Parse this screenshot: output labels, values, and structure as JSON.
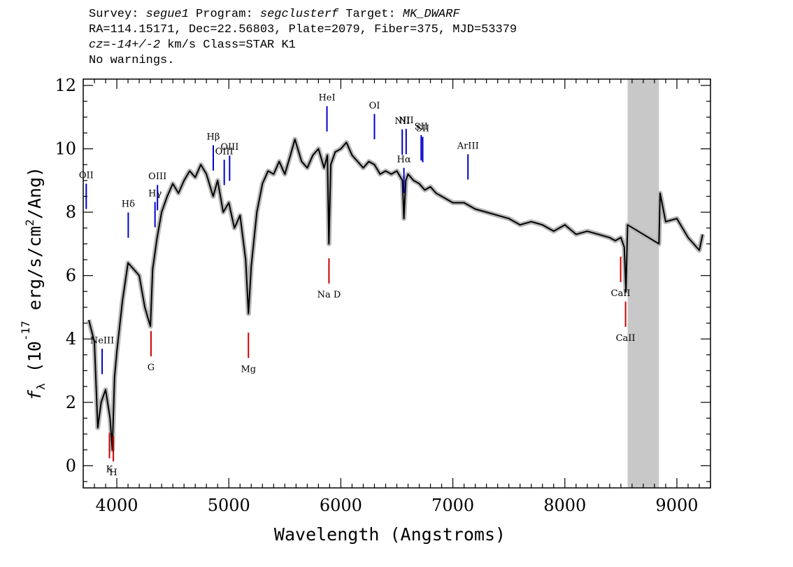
{
  "header": {
    "line1": {
      "survey_label": "Survey: ",
      "survey": "segue1",
      "program_label": " Program: ",
      "program": "segclusterf",
      "target_label": " Target: ",
      "target": "MK_DWARF"
    },
    "line2": "RA=114.15171, Dec=22.56803, Plate=2079, Fiber=375, MJD=53379",
    "line3": {
      "cz_label": "cz",
      "cz_value": "=-14+/-2",
      "rest": " km/s Class=STAR K1"
    },
    "line4": "No warnings."
  },
  "chart_data": {
    "type": "line",
    "xlabel": "Wavelength (Angstroms)",
    "ylabel": "f_λ (10^-17 erg/s/cm^2/Ang)",
    "xlim": [
      3700,
      9300
    ],
    "ylim": [
      -0.7,
      12.2
    ],
    "x_ticks": [
      4000,
      5000,
      6000,
      7000,
      8000,
      9000
    ],
    "y_ticks": [
      0,
      2,
      4,
      6,
      8,
      10,
      12
    ],
    "masked_region": [
      8560,
      8840
    ],
    "series": [
      {
        "color": "#000000",
        "x": [
          3750,
          3800,
          3830,
          3860,
          3900,
          3940,
          3960,
          3980,
          4000,
          4050,
          4100,
          4150,
          4200,
          4250,
          4300,
          4320,
          4360,
          4400,
          4450,
          4500,
          4550,
          4600,
          4650,
          4700,
          4750,
          4800,
          4860,
          4900,
          4950,
          5000,
          5050,
          5100,
          5150,
          5175,
          5200,
          5250,
          5300,
          5350,
          5400,
          5450,
          5500,
          5550,
          5590,
          5650,
          5700,
          5750,
          5800,
          5850,
          5880,
          5893,
          5910,
          5950,
          6000,
          6050,
          6100,
          6150,
          6200,
          6250,
          6300,
          6350,
          6400,
          6450,
          6500,
          6550,
          6563,
          6580,
          6600,
          6650,
          6700,
          6750,
          6800,
          6850,
          6900,
          7000,
          7100,
          7200,
          7300,
          7400,
          7500,
          7600,
          7700,
          7800,
          7900,
          8000,
          8100,
          8200,
          8300,
          8400,
          8450,
          8500,
          8530,
          8545,
          8560,
          8840,
          8850,
          8900,
          9000,
          9100,
          9200,
          9230
        ],
        "y": [
          4.6,
          3.9,
          1.2,
          2.0,
          2.4,
          1.5,
          0.5,
          2.8,
          3.6,
          5.2,
          6.4,
          6.2,
          6.0,
          5.0,
          4.4,
          6.2,
          7.2,
          8.0,
          8.5,
          8.9,
          8.6,
          9.0,
          9.3,
          9.1,
          9.5,
          9.2,
          8.5,
          9.0,
          8.0,
          8.3,
          7.5,
          7.9,
          6.5,
          4.8,
          6.3,
          8.0,
          8.9,
          9.3,
          9.2,
          9.6,
          9.2,
          9.8,
          10.3,
          9.6,
          9.4,
          9.8,
          10.0,
          9.4,
          9.8,
          7.0,
          9.5,
          9.9,
          10.0,
          10.2,
          9.8,
          9.6,
          9.4,
          9.6,
          9.5,
          9.2,
          9.3,
          9.2,
          9.3,
          9.0,
          7.8,
          9.0,
          9.2,
          9.0,
          8.9,
          8.7,
          8.8,
          8.6,
          8.5,
          8.3,
          8.3,
          8.1,
          8.0,
          7.9,
          7.8,
          7.6,
          7.7,
          7.6,
          7.4,
          7.6,
          7.3,
          7.4,
          7.3,
          7.2,
          7.1,
          7.2,
          6.9,
          5.5,
          7.6,
          7.0,
          8.6,
          7.7,
          7.8,
          7.2,
          6.8,
          7.3
        ]
      }
    ],
    "line_labels": [
      {
        "label": "OII",
        "x": 3727,
        "color": "#0000cc"
      },
      {
        "label": "NeIII",
        "x": 3869,
        "color": "#0000cc"
      },
      {
        "label": "Hδ",
        "x": 4102,
        "color": "#0000cc"
      },
      {
        "label": "Hγ",
        "x": 4341,
        "color": "#0000cc"
      },
      {
        "label": "OIII",
        "x": 4363,
        "color": "#0000cc"
      },
      {
        "label": "Hβ",
        "x": 4861,
        "color": "#0000cc"
      },
      {
        "label": "OIII",
        "x": 4959,
        "color": "#0000cc"
      },
      {
        "label": "OIII",
        "x": 5007,
        "color": "#0000cc"
      },
      {
        "label": "HeI",
        "x": 5876,
        "color": "#0000cc"
      },
      {
        "label": "OI",
        "x": 6300,
        "color": "#0000cc"
      },
      {
        "label": "NII",
        "x": 6548,
        "color": "#0000cc"
      },
      {
        "label": "Hα",
        "x": 6563,
        "color": "#0000cc"
      },
      {
        "label": "NII",
        "x": 6583,
        "color": "#0000cc"
      },
      {
        "label": "SII",
        "x": 6717,
        "color": "#0000cc"
      },
      {
        "label": "SII",
        "x": 6731,
        "color": "#0000cc"
      },
      {
        "label": "ArIII",
        "x": 7135,
        "color": "#0000cc"
      },
      {
        "label": "K",
        "x": 3934,
        "color": "#cc0000"
      },
      {
        "label": "H",
        "x": 3969,
        "color": "#cc0000"
      },
      {
        "label": "G",
        "x": 4305,
        "color": "#cc0000"
      },
      {
        "label": "Mg",
        "x": 5175,
        "color": "#cc0000"
      },
      {
        "label": "Na D",
        "x": 5894,
        "color": "#cc0000"
      },
      {
        "label": "CaII",
        "x": 8498,
        "color": "#cc0000"
      },
      {
        "label": "CaII",
        "x": 8542,
        "color": "#cc0000"
      }
    ],
    "grid": false,
    "legend": "none"
  }
}
